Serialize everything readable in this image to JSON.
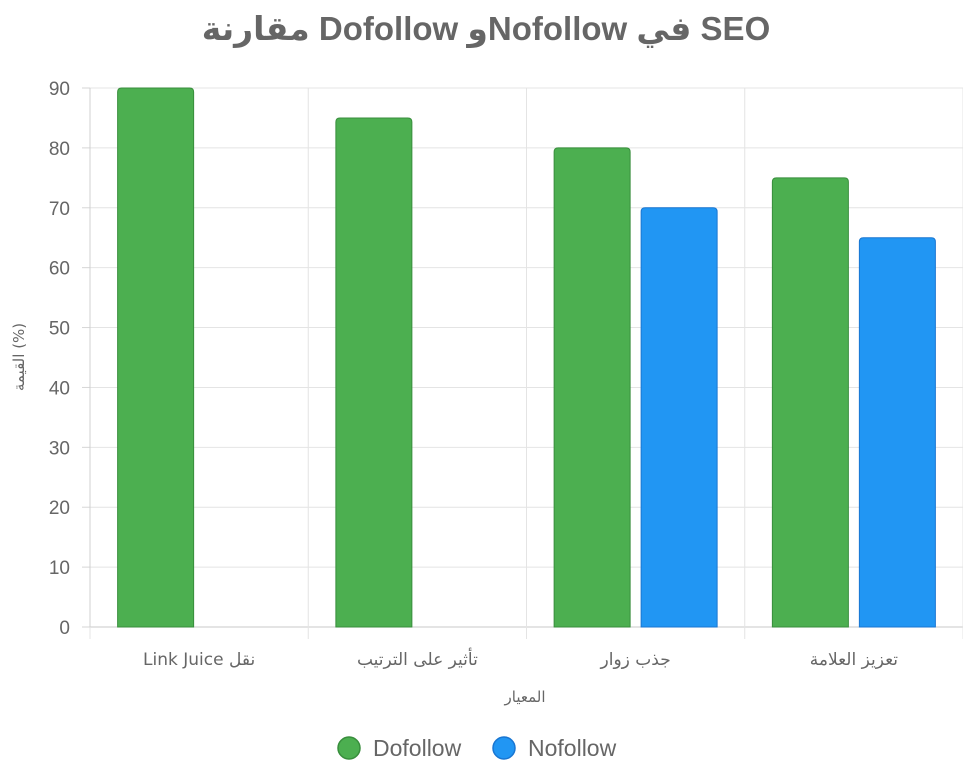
{
  "chart_data": {
    "type": "bar",
    "title": "مقارنة Dofollow وNofollow في SEO",
    "xlabel": "المعيار",
    "ylabel": "القيمة (%)",
    "categories": [
      "نقل Link Juice",
      "تأثير على الترتيب",
      "جذب زوار",
      "تعزيز العلامة"
    ],
    "ylim": [
      0,
      90
    ],
    "yticks": [
      0,
      10,
      20,
      30,
      40,
      50,
      60,
      70,
      80,
      90
    ],
    "grid": true,
    "legend_position": "bottom",
    "series": [
      {
        "name": "Dofollow",
        "values": [
          90,
          85,
          80,
          75
        ],
        "color": "#4caf50",
        "border_color": "#388e3c"
      },
      {
        "name": "Nofollow",
        "values": [
          0,
          0,
          70,
          65
        ],
        "color": "#2196f3",
        "border_color": "#1976d2"
      }
    ]
  }
}
